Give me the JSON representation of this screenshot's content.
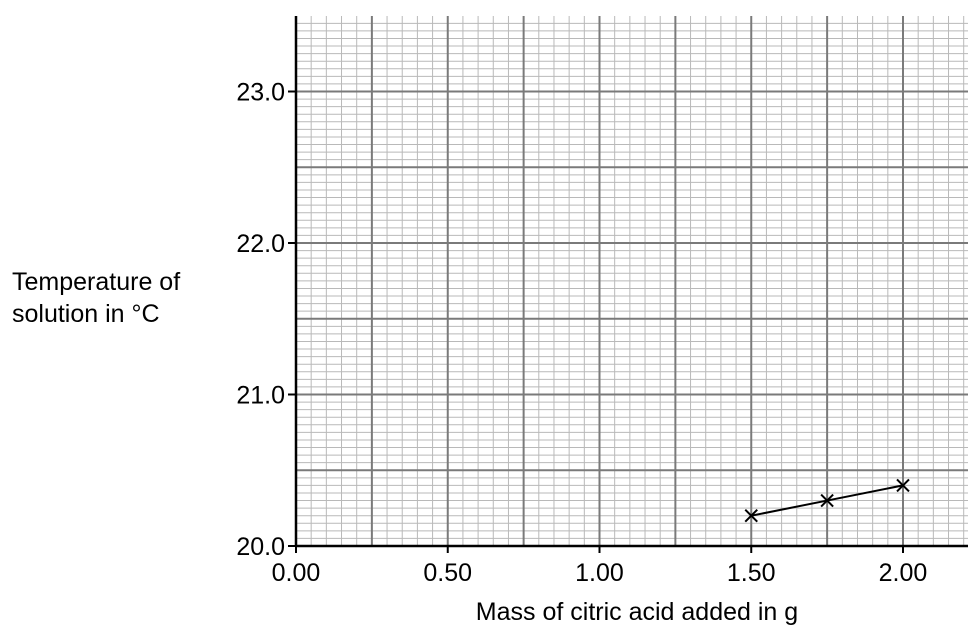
{
  "chart_data": {
    "type": "line",
    "xlabel": "Mass of citric acid added in g",
    "ylabel_lines": [
      "Temperature of",
      "solution in °C"
    ],
    "x_ticks": [
      "0.00",
      "0.50",
      "1.00",
      "1.50",
      "2.00"
    ],
    "y_ticks": [
      "20.0",
      "21.0",
      "22.0",
      "23.0"
    ],
    "xlim": [
      0,
      2.2
    ],
    "ylim": [
      20.0,
      23.5
    ],
    "grid": true,
    "marker": "cross",
    "series": [
      {
        "x": [
          1.5,
          1.75,
          2.0
        ],
        "y": [
          20.2,
          20.3,
          20.4
        ]
      }
    ]
  }
}
